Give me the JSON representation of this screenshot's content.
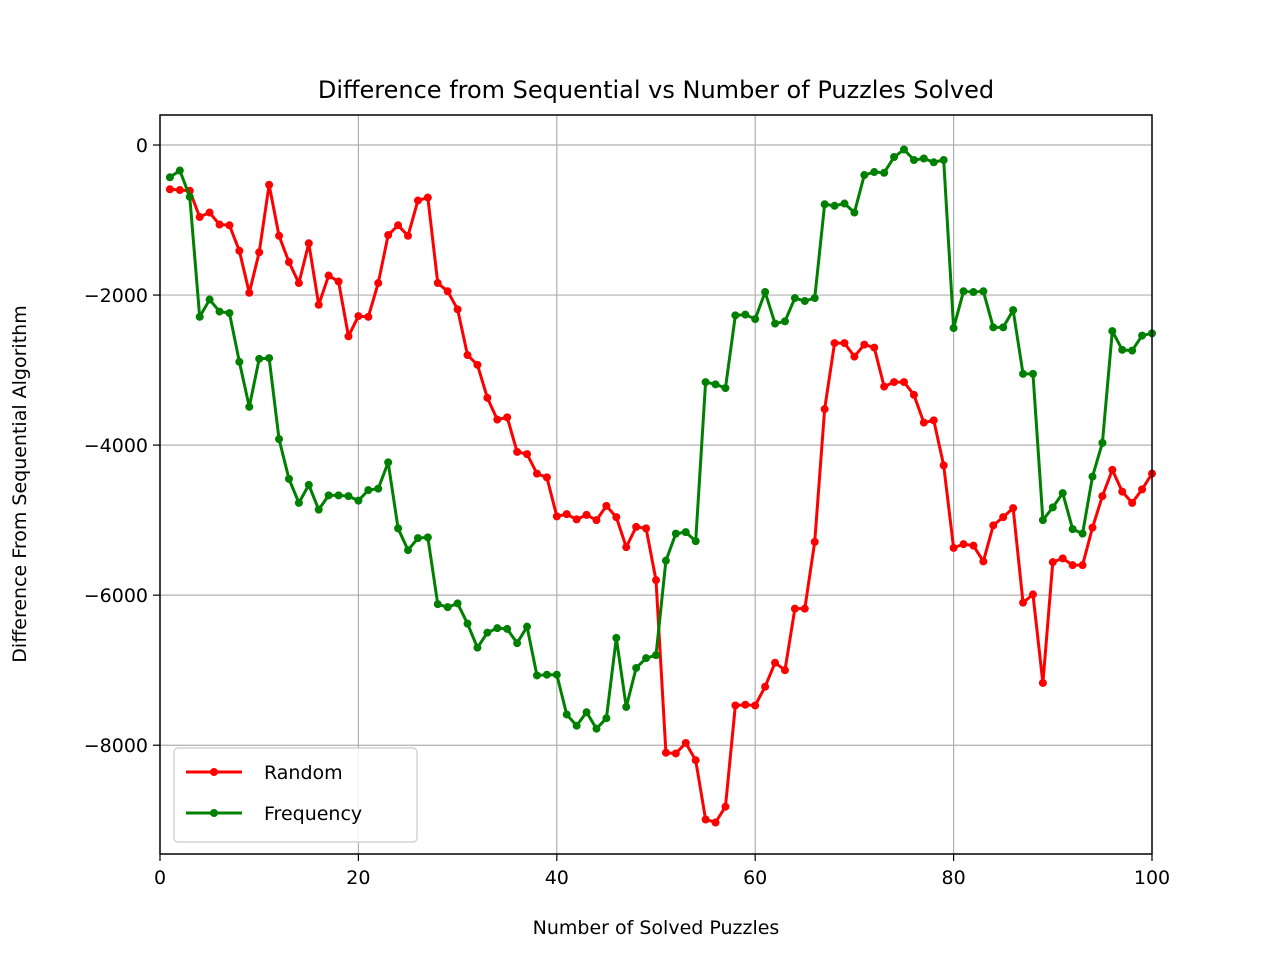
{
  "chart_data": {
    "type": "line",
    "title": "Difference from Sequential vs Number of Puzzles Solved",
    "xlabel": "Number of Solved Puzzles",
    "ylabel": "Difference From Sequential Algorithm",
    "xlim": [
      0,
      100
    ],
    "ylim": [
      -9450,
      400
    ],
    "xticks": [
      0,
      20,
      40,
      60,
      80,
      100
    ],
    "yticks": [
      0,
      -2000,
      -4000,
      -6000,
      -8000
    ],
    "ytick_labels": [
      "0",
      "−2000",
      "−4000",
      "−6000",
      "−8000"
    ],
    "grid": true,
    "legend_position": "lower-left",
    "x": [
      1,
      2,
      3,
      4,
      5,
      6,
      7,
      8,
      9,
      10,
      11,
      12,
      13,
      14,
      15,
      16,
      17,
      18,
      19,
      20,
      21,
      22,
      23,
      24,
      25,
      26,
      27,
      28,
      29,
      30,
      31,
      32,
      33,
      34,
      35,
      36,
      37,
      38,
      39,
      40,
      41,
      42,
      43,
      44,
      45,
      46,
      47,
      48,
      49,
      50,
      51,
      52,
      53,
      54,
      55,
      56,
      57,
      58,
      59,
      60,
      61,
      62,
      63,
      64,
      65,
      66,
      67,
      68,
      69,
      70,
      71,
      72,
      73,
      74,
      75,
      76,
      77,
      78,
      79,
      80,
      81,
      82,
      83,
      84,
      85,
      86,
      87,
      88,
      89,
      90,
      91,
      92,
      93,
      94,
      95,
      96,
      97,
      98,
      99,
      100
    ],
    "series": [
      {
        "name": "Random",
        "color": "#ff0000",
        "values": [
          -590,
          -600,
          -610,
          -960,
          -900,
          -1060,
          -1070,
          -1410,
          -1970,
          -1430,
          -530,
          -1210,
          -1560,
          -1840,
          -1310,
          -2130,
          -1740,
          -1820,
          -2550,
          -2280,
          -2290,
          -1840,
          -1200,
          -1070,
          -1210,
          -740,
          -700,
          -1840,
          -1950,
          -2190,
          -2800,
          -2930,
          -3370,
          -3660,
          -3630,
          -4090,
          -4120,
          -4380,
          -4430,
          -4950,
          -4920,
          -4990,
          -4930,
          -5000,
          -4810,
          -4960,
          -5360,
          -5090,
          -5110,
          -5800,
          -8100,
          -8110,
          -7970,
          -8200,
          -8990,
          -9030,
          -8820,
          -7470,
          -7460,
          -7470,
          -7220,
          -6900,
          -7000,
          -6180,
          -6180,
          -5290,
          -3520,
          -2640,
          -2640,
          -2820,
          -2660,
          -2700,
          -3220,
          -3160,
          -3160,
          -3330,
          -3700,
          -3670,
          -4270,
          -5370,
          -5320,
          -5340,
          -5550,
          -5070,
          -4960,
          -4840,
          -6100,
          -5990,
          -7170,
          -5560,
          -5510,
          -5600,
          -5600,
          -5100,
          -4680,
          -4330,
          -4620,
          -4770,
          -4590,
          -4380
        ]
      },
      {
        "name": "Frequency",
        "color": "#008000",
        "values": [
          -430,
          -340,
          -690,
          -2290,
          -2060,
          -2220,
          -2240,
          -2890,
          -3490,
          -2850,
          -2840,
          -3920,
          -4450,
          -4770,
          -4530,
          -4860,
          -4670,
          -4670,
          -4680,
          -4740,
          -4600,
          -4580,
          -4230,
          -5110,
          -5400,
          -5240,
          -5230,
          -6120,
          -6160,
          -6110,
          -6380,
          -6700,
          -6500,
          -6440,
          -6450,
          -6640,
          -6420,
          -7070,
          -7060,
          -7060,
          -7590,
          -7740,
          -7560,
          -7780,
          -7640,
          -6570,
          -7490,
          -6970,
          -6840,
          -6800,
          -5540,
          -5180,
          -5160,
          -5280,
          -3160,
          -3190,
          -3240,
          -2270,
          -2260,
          -2320,
          -1960,
          -2380,
          -2350,
          -2040,
          -2080,
          -2040,
          -790,
          -810,
          -780,
          -900,
          -400,
          -360,
          -370,
          -160,
          -60,
          -200,
          -180,
          -230,
          -200,
          -2440,
          -1950,
          -1960,
          -1950,
          -2430,
          -2430,
          -2200,
          -3050,
          -3050,
          -5000,
          -4830,
          -4640,
          -5120,
          -5180,
          -4420,
          -3970,
          -2480,
          -2730,
          -2740,
          -2540,
          -2510
        ]
      }
    ]
  }
}
